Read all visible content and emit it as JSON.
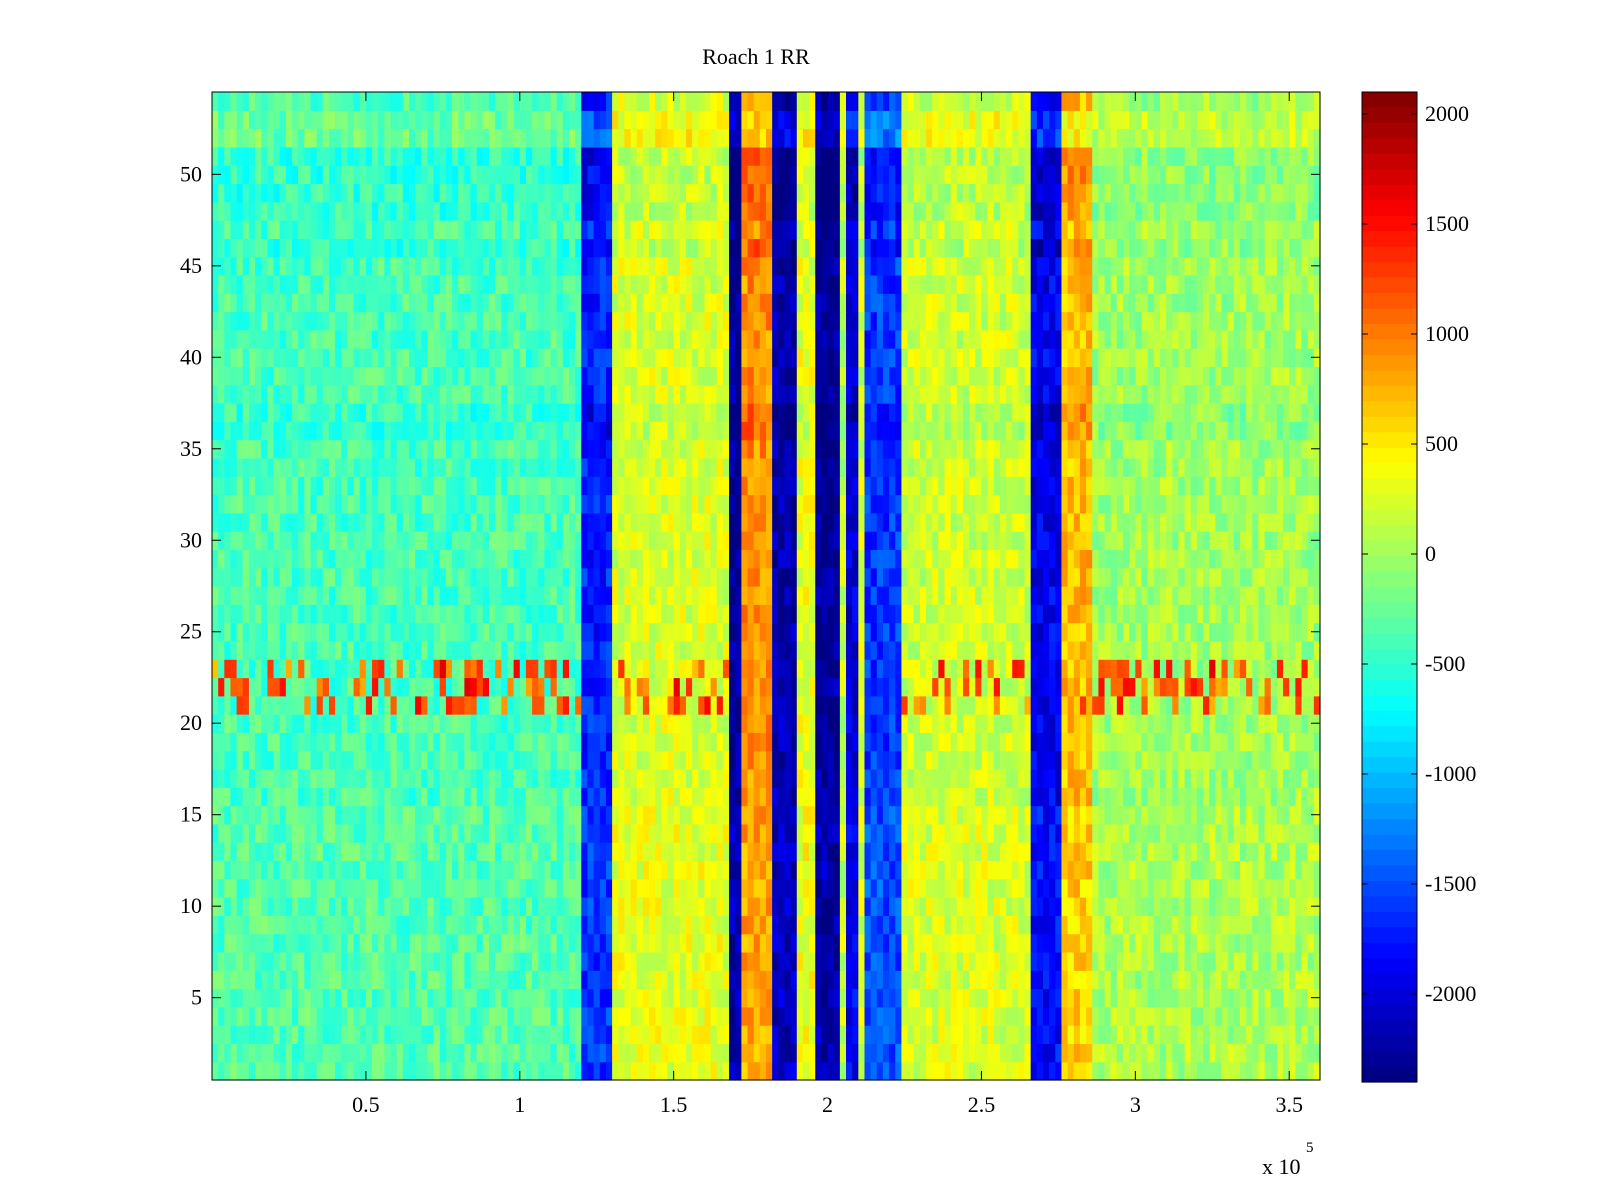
{
  "chart_data": {
    "type": "heatmap",
    "title": "Roach 1 RR",
    "xlabel": "",
    "ylabel": "",
    "x_multiplier_label": "x 10",
    "x_multiplier_exponent": "5",
    "xlim": [
      0,
      360000
    ],
    "ylim": [
      0.5,
      54.5
    ],
    "xticks": [
      {
        "value": 50000,
        "label": "0.5"
      },
      {
        "value": 100000,
        "label": "1"
      },
      {
        "value": 150000,
        "label": "1.5"
      },
      {
        "value": 200000,
        "label": "2"
      },
      {
        "value": 250000,
        "label": "2.5"
      },
      {
        "value": 300000,
        "label": "3"
      },
      {
        "value": 350000,
        "label": "3.5"
      }
    ],
    "yticks": [
      {
        "value": 5,
        "label": "5"
      },
      {
        "value": 10,
        "label": "10"
      },
      {
        "value": 15,
        "label": "15"
      },
      {
        "value": 20,
        "label": "20"
      },
      {
        "value": 25,
        "label": "25"
      },
      {
        "value": 30,
        "label": "30"
      },
      {
        "value": 35,
        "label": "35"
      },
      {
        "value": 40,
        "label": "40"
      },
      {
        "value": 45,
        "label": "45"
      },
      {
        "value": 50,
        "label": "50"
      }
    ],
    "colormap": "jet",
    "clim": [
      -2400,
      2100
    ],
    "colorbar_ticks": [
      {
        "value": 2000,
        "label": "2000"
      },
      {
        "value": 1500,
        "label": "1500"
      },
      {
        "value": 1000,
        "label": "1000"
      },
      {
        "value": 500,
        "label": "500"
      },
      {
        "value": 0,
        "label": "0"
      },
      {
        "value": -500,
        "label": "-500"
      },
      {
        "value": -1000,
        "label": "-1000"
      },
      {
        "value": -1500,
        "label": "-1500"
      },
      {
        "value": -2000,
        "label": "-2000"
      }
    ],
    "background_value": -150,
    "column_bands": [
      {
        "x_start": 0,
        "x_end": 120000,
        "value": -400
      },
      {
        "x_start": 120000,
        "x_end": 131000,
        "value": -1700
      },
      {
        "x_start": 131000,
        "x_end": 169000,
        "value": 250
      },
      {
        "x_start": 169000,
        "x_end": 172000,
        "value": -2300
      },
      {
        "x_start": 172000,
        "x_end": 183000,
        "value": 900
      },
      {
        "x_start": 183000,
        "x_end": 190000,
        "value": -2200
      },
      {
        "x_start": 190000,
        "x_end": 197000,
        "value": 300
      },
      {
        "x_start": 197000,
        "x_end": 204000,
        "value": -2300
      },
      {
        "x_start": 204000,
        "x_end": 207000,
        "value": 100
      },
      {
        "x_start": 207000,
        "x_end": 211000,
        "value": -2000
      },
      {
        "x_start": 211000,
        "x_end": 213000,
        "value": 200
      },
      {
        "x_start": 213000,
        "x_end": 224000,
        "value": -1600
      },
      {
        "x_start": 224000,
        "x_end": 266000,
        "value": 200
      },
      {
        "x_start": 266000,
        "x_end": 277000,
        "value": -1900
      },
      {
        "x_start": 277000,
        "x_end": 287000,
        "value": 700
      },
      {
        "x_start": 287000,
        "x_end": 360000,
        "value": 0
      }
    ],
    "row_modifiers": [
      {
        "rows": [
          1,
          15
        ],
        "offset": 100
      },
      {
        "rows": [
          21,
          23
        ],
        "value_left": 900
      },
      {
        "rows": [
          36,
          37
        ],
        "offset": -200
      },
      {
        "rows": [
          46,
          46
        ],
        "offset": -200
      },
      {
        "rows": [
          48,
          51
        ],
        "offset": -200
      },
      {
        "rows": [
          52,
          53
        ],
        "offset": 300
      }
    ]
  }
}
